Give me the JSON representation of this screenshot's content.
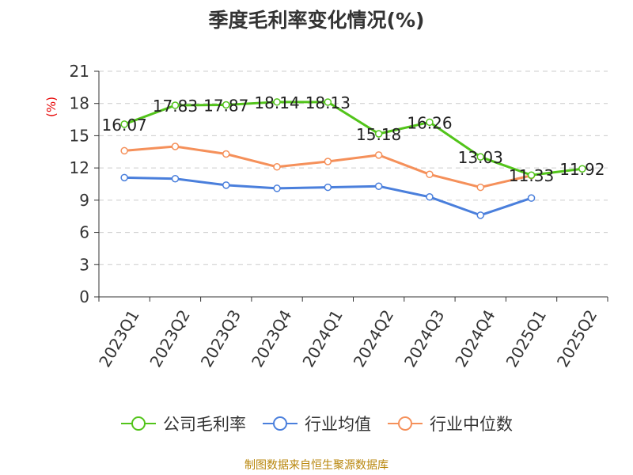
{
  "chart_data": {
    "type": "line",
    "title": "季度毛利率变化情况(%)",
    "ylabel": "(%)",
    "categories": [
      "2023Q1",
      "2023Q2",
      "2023Q3",
      "2023Q4",
      "2024Q1",
      "2024Q2",
      "2024Q3",
      "2024Q4",
      "2025Q1",
      "2025Q2"
    ],
    "ylim": [
      0,
      21
    ],
    "yticks": [
      0,
      3,
      6,
      9,
      12,
      15,
      18,
      21
    ],
    "grid": true,
    "legend_position": "bottom",
    "series": [
      {
        "name": "公司毛利率",
        "color": "#52c41a",
        "labels": true,
        "values": [
          16.07,
          17.83,
          17.87,
          18.14,
          18.13,
          15.18,
          16.26,
          13.03,
          11.33,
          11.92
        ]
      },
      {
        "name": "行业均值",
        "color": "#4a7fdc",
        "labels": false,
        "values": [
          11.1,
          11.0,
          10.4,
          10.1,
          10.2,
          10.3,
          9.3,
          7.6,
          9.2,
          null
        ]
      },
      {
        "name": "行业中位数",
        "color": "#f5905a",
        "labels": false,
        "values": [
          13.6,
          14.0,
          13.3,
          12.1,
          12.6,
          13.2,
          11.4,
          10.2,
          11.3,
          null
        ]
      }
    ],
    "source": "制图数据来自恒生聚源数据库"
  }
}
